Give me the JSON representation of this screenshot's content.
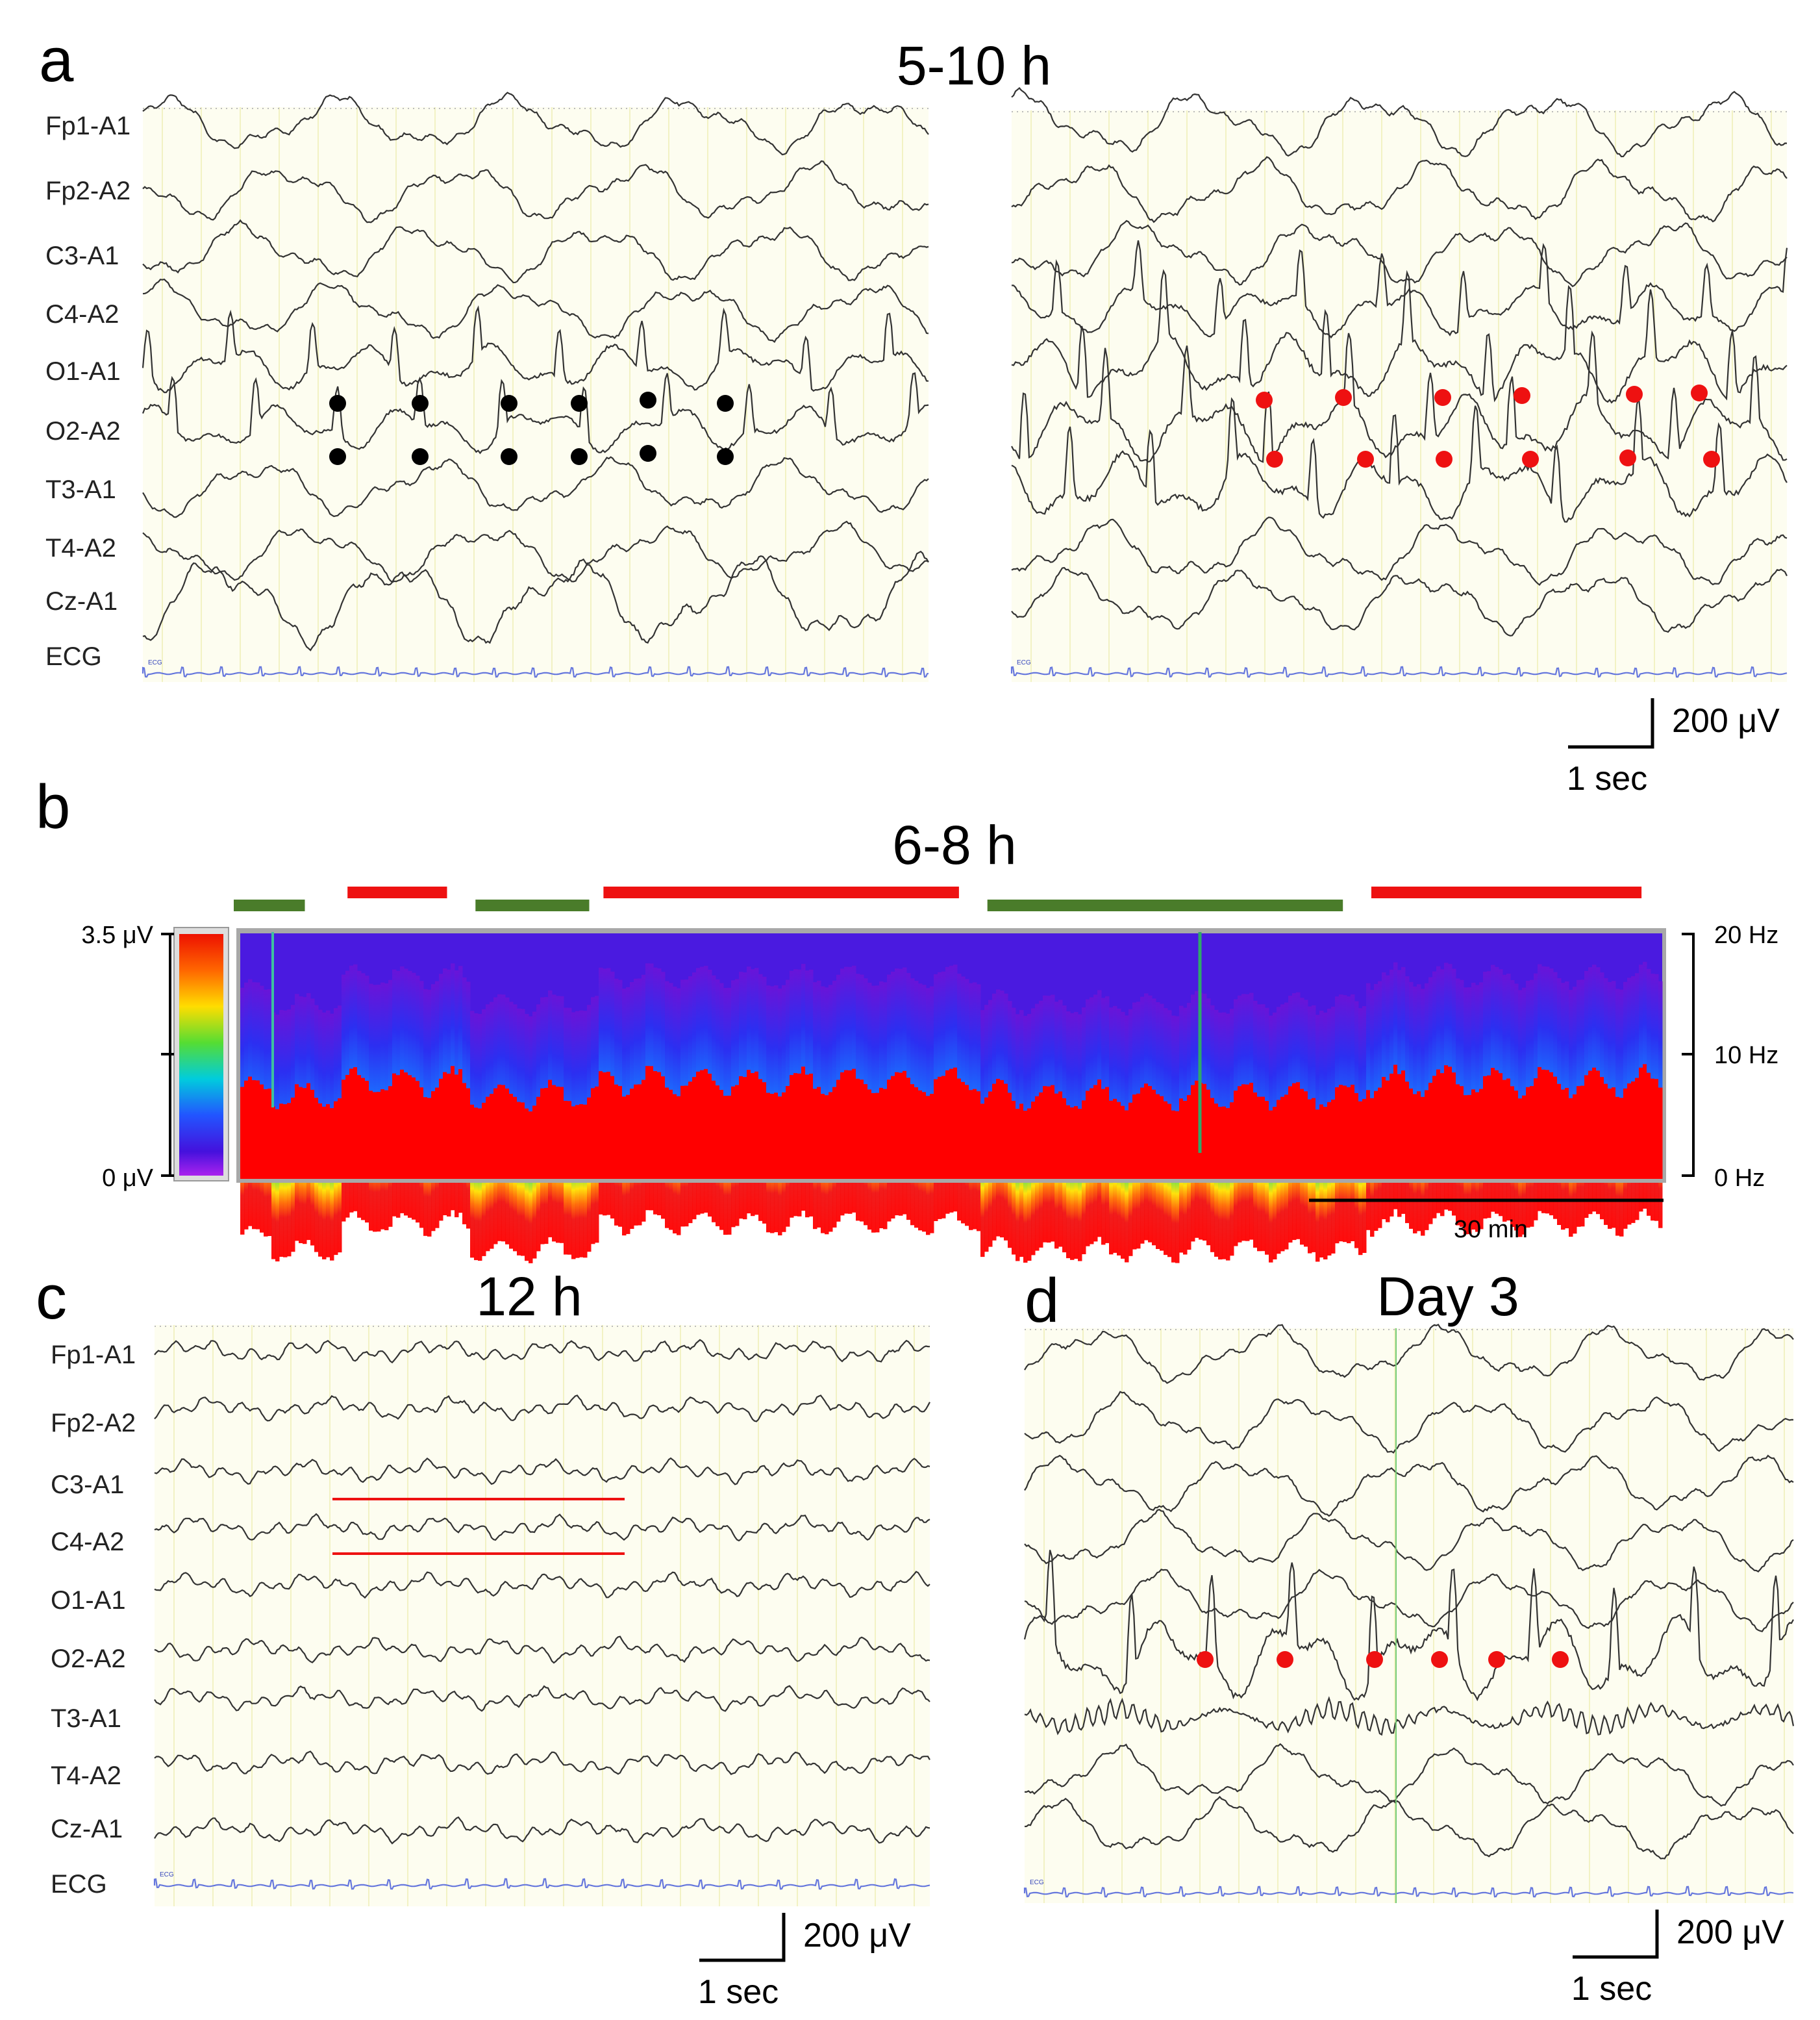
{
  "panels": {
    "a": {
      "label": "a",
      "title": "5-10 h"
    },
    "b": {
      "label": "b",
      "title": "6-8 h"
    },
    "c": {
      "label": "c",
      "title": "12 h"
    },
    "d": {
      "label": "d",
      "title": "Day 3"
    }
  },
  "channels": [
    "Fp1-A1",
    "Fp2-A2",
    "C3-A1",
    "C4-A2",
    "O1-A1",
    "O2-A2",
    "T3-A1",
    "T4-A2",
    "Cz-A1",
    "ECG"
  ],
  "ecg_tag": "ECG",
  "scalebar": {
    "amplitude": "200 μV",
    "time": "1 sec"
  },
  "spectrogram": {
    "cbar_top": "3.5 μV",
    "cbar_bottom": "0 μV",
    "freq_ticks": [
      "20 Hz",
      "10 Hz",
      "0 Hz"
    ],
    "time_scale": "30 min",
    "state_bars": [
      {
        "state": "green",
        "start": 0.0,
        "end": 0.05
      },
      {
        "state": "red",
        "start": 0.08,
        "end": 0.15
      },
      {
        "state": "green",
        "start": 0.17,
        "end": 0.25
      },
      {
        "state": "red",
        "start": 0.26,
        "end": 0.51
      },
      {
        "state": "green",
        "start": 0.53,
        "end": 0.78
      },
      {
        "state": "red",
        "start": 0.8,
        "end": 0.99
      }
    ],
    "colors": {
      "green": "#4a7c2a",
      "red": "#ee1111"
    }
  },
  "colors": {
    "trace": "#333333",
    "ecg": "#6677dd",
    "background": "#fdfdf0",
    "gridline": "#f2f2c4",
    "marker_black": "#000000",
    "marker_red": "#ee1111"
  }
}
